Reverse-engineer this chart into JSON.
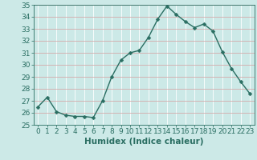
{
  "x": [
    0,
    1,
    2,
    3,
    4,
    5,
    6,
    7,
    8,
    9,
    10,
    11,
    12,
    13,
    14,
    15,
    16,
    17,
    18,
    19,
    20,
    21,
    22,
    23
  ],
  "y": [
    26.5,
    27.3,
    26.1,
    25.8,
    25.7,
    25.7,
    25.6,
    27.0,
    29.0,
    30.4,
    31.0,
    31.2,
    32.3,
    33.8,
    34.9,
    34.2,
    33.6,
    33.1,
    33.4,
    32.8,
    31.1,
    29.7,
    28.6,
    27.6
  ],
  "line_color": "#2a6e62",
  "marker_color": "#2a6e62",
  "bg_color": "#cce9e7",
  "grid_color_major": "#e8b8b8",
  "grid_color_minor": "#ffffff",
  "xlabel": "Humidex (Indice chaleur)",
  "ylim": [
    25,
    35
  ],
  "yticks": [
    25,
    26,
    27,
    28,
    29,
    30,
    31,
    32,
    33,
    34,
    35
  ],
  "xticks": [
    0,
    1,
    2,
    3,
    4,
    5,
    6,
    7,
    8,
    9,
    10,
    11,
    12,
    13,
    14,
    15,
    16,
    17,
    18,
    19,
    20,
    21,
    22,
    23
  ],
  "xlabel_fontsize": 7.5,
  "tick_fontsize": 6.5,
  "line_width": 1.0,
  "marker_size": 2.5
}
